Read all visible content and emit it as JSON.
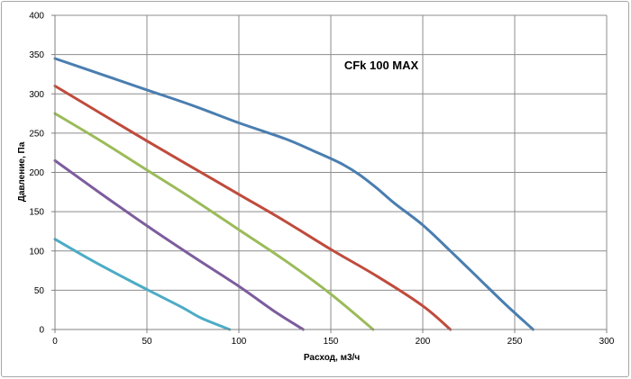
{
  "chart_data": {
    "type": "line",
    "title": "CFk 100 MAX",
    "xlabel": "Расход, м3/ч",
    "ylabel": "Давление, Па",
    "xlim": [
      0,
      300
    ],
    "ylim": [
      0,
      400
    ],
    "x_ticks": [
      0,
      50,
      100,
      150,
      200,
      250,
      300
    ],
    "y_ticks": [
      0,
      50,
      100,
      150,
      200,
      250,
      300,
      350,
      400
    ],
    "grid": true,
    "legend": "none",
    "series": [
      {
        "color": "#4a7eb0",
        "points": [
          [
            0,
            345
          ],
          [
            25,
            325
          ],
          [
            50,
            305
          ],
          [
            75,
            285
          ],
          [
            100,
            263
          ],
          [
            125,
            243
          ],
          [
            140,
            228
          ],
          [
            155,
            212
          ],
          [
            165,
            198
          ],
          [
            175,
            180
          ],
          [
            185,
            160
          ],
          [
            200,
            133
          ],
          [
            215,
            100
          ],
          [
            230,
            66
          ],
          [
            245,
            32
          ],
          [
            260,
            0
          ]
        ]
      },
      {
        "color": "#bf4b3c",
        "points": [
          [
            0,
            310
          ],
          [
            25,
            275
          ],
          [
            50,
            240
          ],
          [
            75,
            206
          ],
          [
            100,
            172
          ],
          [
            125,
            138
          ],
          [
            150,
            102
          ],
          [
            175,
            68
          ],
          [
            200,
            30
          ],
          [
            215,
            0
          ]
        ]
      },
      {
        "color": "#9bbb59",
        "points": [
          [
            0,
            275
          ],
          [
            25,
            240
          ],
          [
            50,
            203
          ],
          [
            75,
            166
          ],
          [
            100,
            127
          ],
          [
            125,
            88
          ],
          [
            150,
            45
          ],
          [
            173,
            0
          ]
        ]
      },
      {
        "color": "#7c5c9e",
        "points": [
          [
            0,
            215
          ],
          [
            25,
            173
          ],
          [
            50,
            132
          ],
          [
            75,
            93
          ],
          [
            100,
            55
          ],
          [
            120,
            22
          ],
          [
            135,
            0
          ]
        ]
      },
      {
        "color": "#4cacc6",
        "points": [
          [
            0,
            115
          ],
          [
            20,
            88
          ],
          [
            40,
            63
          ],
          [
            55,
            45
          ],
          [
            70,
            27
          ],
          [
            80,
            14
          ],
          [
            95,
            0
          ]
        ]
      }
    ]
  }
}
